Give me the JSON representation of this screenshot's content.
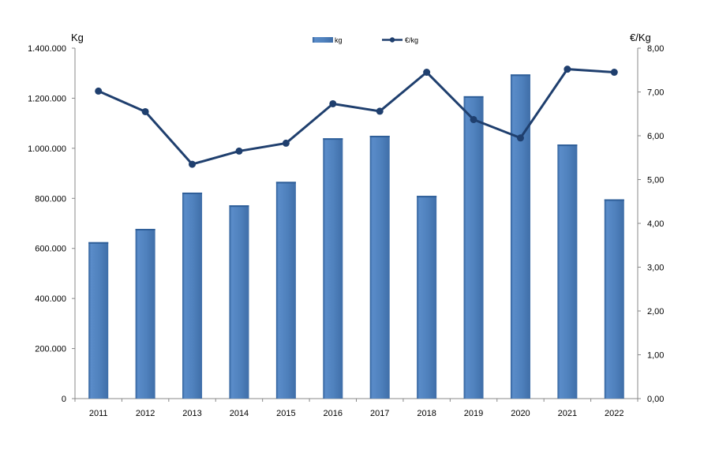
{
  "chart_data": {
    "type": "bar",
    "categories": [
      "2011",
      "2012",
      "2013",
      "2014",
      "2015",
      "2016",
      "2017",
      "2018",
      "2019",
      "2020",
      "2021",
      "2022"
    ],
    "series": [
      {
        "name": "kg",
        "type": "bar",
        "axis": "left",
        "values": [
          625000,
          678000,
          823000,
          772000,
          866000,
          1040000,
          1050000,
          810000,
          1208000,
          1295000,
          1015000,
          796000
        ]
      },
      {
        "name": "€/kg",
        "type": "line",
        "axis": "right",
        "values": [
          7.02,
          6.55,
          5.35,
          5.65,
          5.83,
          6.73,
          6.56,
          7.45,
          6.37,
          5.95,
          7.52,
          7.45
        ]
      }
    ],
    "y_left": {
      "label": "Kg",
      "min": 0,
      "max": 1400000,
      "ticks": [
        "0",
        "200.000",
        "400.000",
        "600.000",
        "800.000",
        "1.000.000",
        "1.200.000",
        "1.400.000"
      ]
    },
    "y_right": {
      "label": "€/Kg",
      "min": 0,
      "max": 8,
      "ticks": [
        "0,00",
        "1,00",
        "2,00",
        "3,00",
        "4,00",
        "5,00",
        "6,00",
        "7,00",
        "8,00"
      ]
    },
    "legend": {
      "position": "top-center"
    },
    "grid": false,
    "colors": {
      "bar": "#4f81bd",
      "bar_light": "#7ea6d8",
      "bar_dark": "#2f5f99",
      "line": "#1f3f6e",
      "axis": "#888888"
    }
  }
}
